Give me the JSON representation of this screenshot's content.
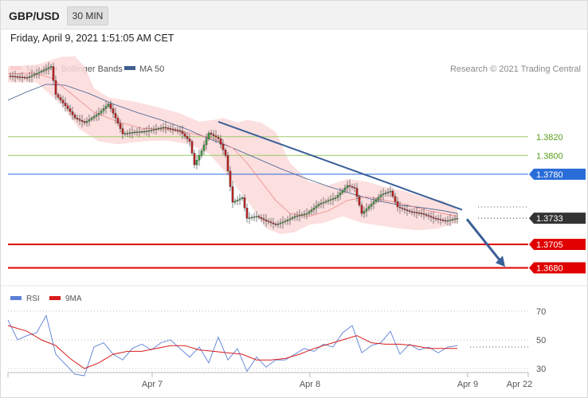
{
  "header": {
    "pair": "GBP/USD",
    "timeframe": "30 MIN",
    "datetime": "Friday, April 9, 2021 1:51:05 AM CET"
  },
  "colors": {
    "bollinger_band": "#fcd9d9",
    "ma20": "#f08a8a",
    "ma50": "#3f5f8f",
    "candle_up": "#3f9a3f",
    "candle_down": "#bb2222",
    "resistance_green": "#9ccc65",
    "pivot_blue": "#2a6dd9",
    "support_red": "#e00000",
    "current_price": "#333333",
    "trendline": "#3a5f98",
    "rsi": "#5b7fd6",
    "rsi_ma": "#d81b1b"
  },
  "chart_data": [
    {
      "type": "line",
      "title": "",
      "legend": [
        {
          "name": "MA 20 + Bollinger Bands"
        },
        {
          "name": "MA 50"
        }
      ],
      "legend_position": "top-left",
      "copyright": "Research © 2021 Trading Central",
      "x_ticks": [
        "Apr 7",
        "Apr 8",
        "Apr 9",
        "Apr 22"
      ],
      "y_range": [
        1.366,
        1.3915
      ],
      "price_levels": [
        {
          "value": 1.382,
          "label": "1.3820",
          "role": "resistance"
        },
        {
          "value": 1.38,
          "label": "1.3800",
          "role": "resistance"
        },
        {
          "value": 1.378,
          "label": "1.3780",
          "role": "pivot"
        },
        {
          "value": 1.3733,
          "label": "1.3733",
          "role": "current"
        },
        {
          "value": 1.3705,
          "label": "1.3705",
          "role": "support"
        },
        {
          "value": 1.368,
          "label": "1.3680",
          "role": "support"
        }
      ],
      "price_path": [
        [
          0,
          1.3885
        ],
        [
          8,
          1.3883
        ],
        [
          14,
          1.389
        ],
        [
          18,
          1.3895
        ],
        [
          20,
          1.3865
        ],
        [
          25,
          1.385
        ],
        [
          28,
          1.384
        ],
        [
          32,
          1.3835
        ],
        [
          38,
          1.3845
        ],
        [
          42,
          1.3855
        ],
        [
          45,
          1.384
        ],
        [
          48,
          1.3823
        ],
        [
          53,
          1.3825
        ],
        [
          58,
          1.3826
        ],
        [
          65,
          1.383
        ],
        [
          72,
          1.3826
        ],
        [
          76,
          1.3815
        ],
        [
          78,
          1.379
        ],
        [
          81,
          1.3805
        ],
        [
          84,
          1.3824
        ],
        [
          88,
          1.3818
        ],
        [
          91,
          1.38
        ],
        [
          94,
          1.375
        ],
        [
          98,
          1.3755
        ],
        [
          100,
          1.3733
        ],
        [
          104,
          1.3735
        ],
        [
          108,
          1.373
        ],
        [
          112,
          1.3726
        ],
        [
          116,
          1.373
        ],
        [
          120,
          1.3735
        ],
        [
          125,
          1.3738
        ],
        [
          130,
          1.3748
        ],
        [
          137,
          1.3755
        ],
        [
          142,
          1.3768
        ],
        [
          145,
          1.3765
        ],
        [
          148,
          1.3738
        ],
        [
          152,
          1.3748
        ],
        [
          156,
          1.3758
        ],
        [
          160,
          1.3762
        ],
        [
          163,
          1.3745
        ],
        [
          168,
          1.374
        ],
        [
          173,
          1.3738
        ],
        [
          178,
          1.3733
        ],
        [
          183,
          1.373
        ],
        [
          188,
          1.3733
        ]
      ],
      "ma20_path": [
        [
          0,
          1.3887
        ],
        [
          10,
          1.3888
        ],
        [
          18,
          1.3883
        ],
        [
          26,
          1.3867
        ],
        [
          36,
          1.3846
        ],
        [
          46,
          1.3836
        ],
        [
          56,
          1.3829
        ],
        [
          66,
          1.3828
        ],
        [
          76,
          1.3824
        ],
        [
          86,
          1.3818
        ],
        [
          94,
          1.3808
        ],
        [
          100,
          1.3792
        ],
        [
          106,
          1.3772
        ],
        [
          112,
          1.3752
        ],
        [
          118,
          1.3738
        ],
        [
          126,
          1.3735
        ],
        [
          134,
          1.3741
        ],
        [
          142,
          1.3752
        ],
        [
          150,
          1.3756
        ],
        [
          158,
          1.3752
        ],
        [
          166,
          1.3748
        ],
        [
          174,
          1.3742
        ],
        [
          182,
          1.3738
        ],
        [
          188,
          1.3735
        ]
      ],
      "ma50_path": [
        [
          0,
          1.3859
        ],
        [
          8,
          1.3868
        ],
        [
          16,
          1.3876
        ],
        [
          24,
          1.3875
        ],
        [
          34,
          1.3866
        ],
        [
          44,
          1.3855
        ],
        [
          54,
          1.3846
        ],
        [
          64,
          1.3838
        ],
        [
          74,
          1.3829
        ],
        [
          84,
          1.3818
        ],
        [
          94,
          1.3808
        ],
        [
          104,
          1.3797
        ],
        [
          114,
          1.3786
        ],
        [
          124,
          1.3776
        ],
        [
          134,
          1.3767
        ],
        [
          144,
          1.3759
        ],
        [
          154,
          1.3752
        ],
        [
          164,
          1.3747
        ],
        [
          174,
          1.3744
        ],
        [
          182,
          1.3741
        ],
        [
          188,
          1.3738
        ]
      ],
      "bollinger_upper": [
        [
          0,
          1.3895
        ],
        [
          12,
          1.3897
        ],
        [
          22,
          1.3905
        ],
        [
          28,
          1.3906
        ],
        [
          32,
          1.3895
        ],
        [
          36,
          1.3872
        ],
        [
          42,
          1.3862
        ],
        [
          52,
          1.3858
        ],
        [
          62,
          1.3852
        ],
        [
          72,
          1.3845
        ],
        [
          80,
          1.3836
        ],
        [
          86,
          1.3838
        ],
        [
          90,
          1.384
        ],
        [
          96,
          1.3835
        ],
        [
          100,
          1.3838
        ],
        [
          106,
          1.3835
        ],
        [
          112,
          1.3825
        ],
        [
          118,
          1.3792
        ],
        [
          126,
          1.3772
        ],
        [
          134,
          1.3768
        ],
        [
          142,
          1.3775
        ],
        [
          150,
          1.3772
        ],
        [
          158,
          1.3766
        ],
        [
          166,
          1.3762
        ],
        [
          174,
          1.3755
        ],
        [
          182,
          1.3752
        ],
        [
          188,
          1.3742
        ]
      ],
      "bollinger_lower": [
        [
          0,
          1.3878
        ],
        [
          12,
          1.3878
        ],
        [
          22,
          1.3855
        ],
        [
          30,
          1.3828
        ],
        [
          38,
          1.3815
        ],
        [
          46,
          1.3812
        ],
        [
          56,
          1.3815
        ],
        [
          66,
          1.3816
        ],
        [
          76,
          1.3812
        ],
        [
          84,
          1.3802
        ],
        [
          90,
          1.3785
        ],
        [
          96,
          1.3765
        ],
        [
          102,
          1.3745
        ],
        [
          108,
          1.3722
        ],
        [
          114,
          1.3716
        ],
        [
          120,
          1.3718
        ],
        [
          126,
          1.3726
        ],
        [
          132,
          1.3728
        ],
        [
          140,
          1.3735
        ],
        [
          148,
          1.3728
        ],
        [
          156,
          1.3725
        ],
        [
          164,
          1.3722
        ],
        [
          172,
          1.372
        ],
        [
          180,
          1.3722
        ],
        [
          188,
          1.3728
        ]
      ],
      "trendline": {
        "from": [
          88,
          1.3836
        ],
        "to": [
          190,
          1.3742
        ]
      },
      "projection_arrow": {
        "from": [
          192,
          1.3732
        ],
        "to": [
          208,
          1.3681
        ]
      }
    },
    {
      "type": "line",
      "title": "",
      "legend": [
        {
          "name": "RSI"
        },
        {
          "name": "9MA"
        }
      ],
      "legend_position": "top-left",
      "y_ticks": [
        70,
        50,
        30
      ],
      "y_range": [
        20,
        80
      ],
      "rsi_path": [
        [
          0,
          64
        ],
        [
          4,
          50
        ],
        [
          8,
          53
        ],
        [
          12,
          55
        ],
        [
          16,
          67
        ],
        [
          20,
          40
        ],
        [
          24,
          33
        ],
        [
          28,
          26
        ],
        [
          32,
          25
        ],
        [
          36,
          45
        ],
        [
          40,
          48
        ],
        [
          44,
          40
        ],
        [
          48,
          36
        ],
        [
          52,
          44
        ],
        [
          56,
          47
        ],
        [
          60,
          43
        ],
        [
          64,
          48
        ],
        [
          68,
          50
        ],
        [
          72,
          44
        ],
        [
          76,
          38
        ],
        [
          80,
          45
        ],
        [
          84,
          34
        ],
        [
          88,
          52
        ],
        [
          92,
          36
        ],
        [
          96,
          44
        ],
        [
          100,
          28
        ],
        [
          104,
          38
        ],
        [
          108,
          31
        ],
        [
          112,
          36
        ],
        [
          116,
          36
        ],
        [
          120,
          40
        ],
        [
          124,
          44
        ],
        [
          128,
          42
        ],
        [
          132,
          47
        ],
        [
          136,
          45
        ],
        [
          140,
          55
        ],
        [
          144,
          60
        ],
        [
          148,
          41
        ],
        [
          152,
          46
        ],
        [
          156,
          48
        ],
        [
          160,
          56
        ],
        [
          164,
          40
        ],
        [
          168,
          47
        ],
        [
          172,
          43
        ],
        [
          176,
          45
        ],
        [
          180,
          41
        ],
        [
          184,
          45
        ],
        [
          188,
          46
        ]
      ],
      "rsi_ma_path": [
        [
          0,
          60
        ],
        [
          8,
          56
        ],
        [
          14,
          50
        ],
        [
          20,
          46
        ],
        [
          26,
          37
        ],
        [
          32,
          30
        ],
        [
          38,
          34
        ],
        [
          44,
          40
        ],
        [
          50,
          42
        ],
        [
          56,
          42
        ],
        [
          62,
          44
        ],
        [
          68,
          46
        ],
        [
          74,
          46
        ],
        [
          80,
          43
        ],
        [
          86,
          42
        ],
        [
          92,
          41
        ],
        [
          98,
          40
        ],
        [
          104,
          36
        ],
        [
          110,
          36
        ],
        [
          116,
          37
        ],
        [
          122,
          40
        ],
        [
          128,
          44
        ],
        [
          134,
          47
        ],
        [
          140,
          50
        ],
        [
          146,
          53
        ],
        [
          152,
          48
        ],
        [
          158,
          47
        ],
        [
          164,
          47
        ],
        [
          170,
          46
        ],
        [
          176,
          44
        ],
        [
          182,
          44
        ],
        [
          188,
          44
        ]
      ]
    }
  ]
}
